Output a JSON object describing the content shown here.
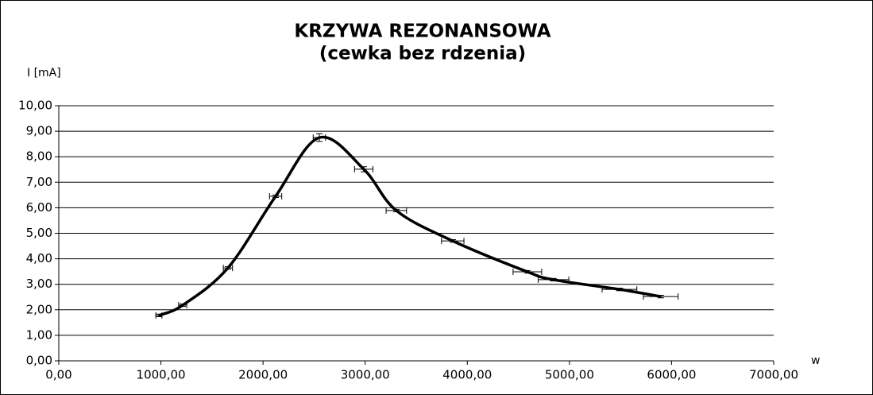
{
  "chart_data": {
    "type": "line",
    "title": "KRZYWA REZONANSOWA",
    "subtitle": "(cewka bez rdzenia)",
    "y_label": "I [mA]",
    "x_label": "w",
    "x": [
      980,
      1213,
      1656,
      2123,
      2551,
      2986,
      3305,
      3857,
      4588,
      4844,
      5490,
      5894
    ],
    "series": [
      {
        "color": "#000000",
        "values": [
          1.78,
          2.18,
          3.64,
          6.45,
          8.75,
          7.51,
          5.89,
          4.7,
          3.49,
          3.18,
          2.8,
          2.52
        ],
        "x_err": [
          30,
          40,
          45,
          60,
          60,
          90,
          100,
          110,
          140,
          150,
          170,
          170
        ],
        "y_err": [
          0.05,
          0.05,
          0.05,
          0.05,
          0.15,
          0.1,
          0.05,
          0.05,
          0.05,
          0.05,
          0.05,
          0.05
        ]
      }
    ],
    "xlim": [
      0,
      7000
    ],
    "ylim": [
      0,
      10
    ],
    "xticks": [
      {
        "value": 0,
        "label": "0,00"
      },
      {
        "value": 1000,
        "label": "1000,00"
      },
      {
        "value": 2000,
        "label": "2000,00"
      },
      {
        "value": 3000,
        "label": "3000,00"
      },
      {
        "value": 4000,
        "label": "4000,00"
      },
      {
        "value": 5000,
        "label": "5000,00"
      },
      {
        "value": 6000,
        "label": "6000,00"
      },
      {
        "value": 7000,
        "label": "7000,00"
      }
    ],
    "yticks": [
      {
        "value": 0,
        "label": "0,00"
      },
      {
        "value": 1,
        "label": "1,00"
      },
      {
        "value": 2,
        "label": "2,00"
      },
      {
        "value": 3,
        "label": "3,00"
      },
      {
        "value": 4,
        "label": "4,00"
      },
      {
        "value": 5,
        "label": "5,00"
      },
      {
        "value": 6,
        "label": "6,00"
      },
      {
        "value": 7,
        "label": "7,00"
      },
      {
        "value": 8,
        "label": "8,00"
      },
      {
        "value": 9,
        "label": "9,00"
      },
      {
        "value": 10,
        "label": "10,00"
      }
    ],
    "grid": true
  }
}
